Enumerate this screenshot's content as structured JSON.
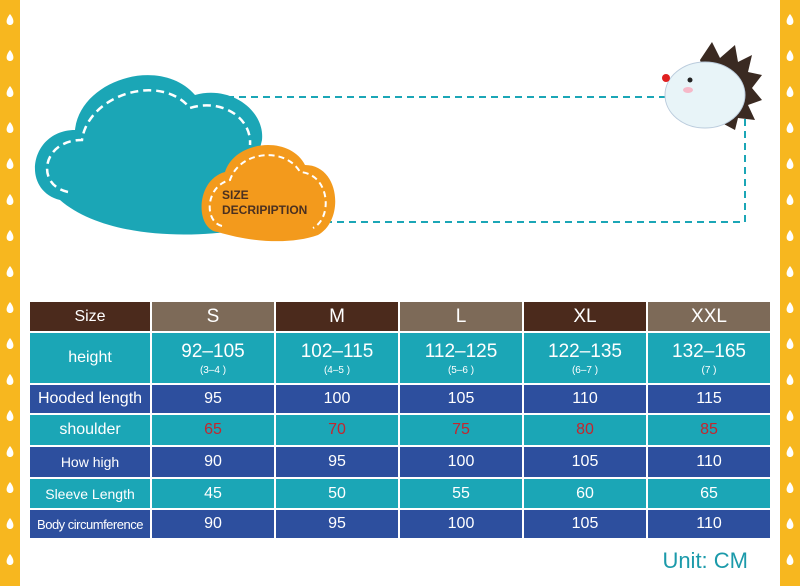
{
  "banner": {
    "title": "SIZE DECRIPIPTION"
  },
  "table": {
    "header": [
      "Size",
      "S",
      "M",
      "L",
      "XL",
      "XXL"
    ],
    "rows": [
      {
        "label": "height",
        "values": [
          "92–105",
          "102–115",
          "112–125",
          "122–135",
          "132–165"
        ],
        "notes": [
          "(3–4 )",
          "(4–5 )",
          "(5–6 )",
          "(6–7 )",
          "(7 )"
        ]
      },
      {
        "label": "Hooded length",
        "values": [
          95,
          100,
          105,
          110,
          115
        ]
      },
      {
        "label": "shoulder",
        "values": [
          65,
          70,
          75,
          80,
          85
        ]
      },
      {
        "label": "How high",
        "values": [
          90,
          95,
          100,
          105,
          110
        ]
      },
      {
        "label": "Sleeve Length",
        "values": [
          45,
          50,
          55,
          60,
          65
        ]
      },
      {
        "label": "Body circumference",
        "values": [
          90,
          95,
          100,
          105,
          110
        ]
      }
    ]
  },
  "footer": {
    "unit": "Unit: CM"
  }
}
